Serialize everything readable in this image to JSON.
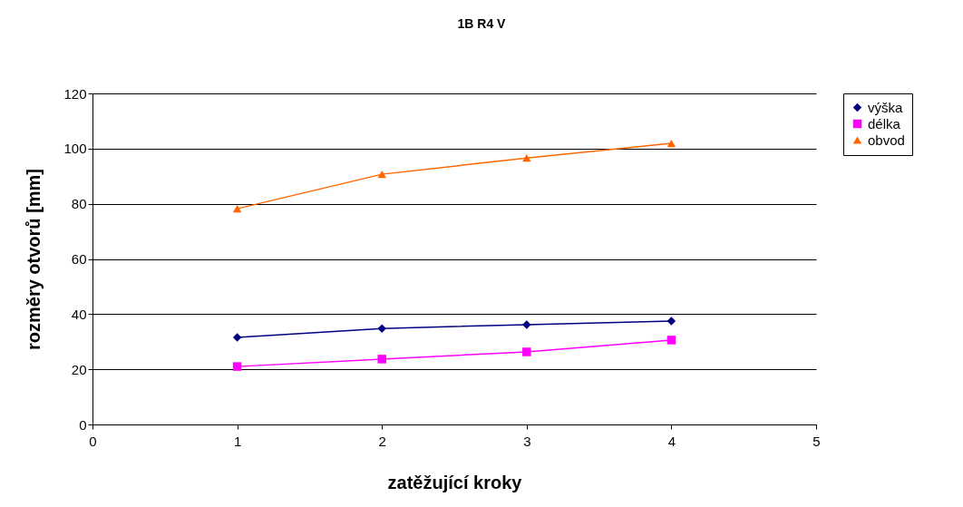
{
  "chart_data": {
    "type": "line",
    "title": "1B R4 V",
    "xlabel": "zatěžující kroky",
    "ylabel": "rozměry otvorů [mm]",
    "x": [
      1,
      2,
      3,
      4
    ],
    "series": [
      {
        "name": "výška",
        "color": "#000080",
        "marker": "diamond",
        "values": [
          31.6,
          34.8,
          36.2,
          37.5
        ]
      },
      {
        "name": "délka",
        "color": "#ff00ff",
        "marker": "square",
        "values": [
          21.0,
          23.7,
          26.3,
          30.6
        ]
      },
      {
        "name": "obvod",
        "color": "#ff6600",
        "marker": "triangle",
        "values": [
          78.2,
          90.7,
          96.6,
          101.9
        ]
      }
    ],
    "xlim": [
      0,
      5
    ],
    "xticks": [
      0,
      1,
      2,
      3,
      4,
      5
    ],
    "ylim": [
      0,
      120
    ],
    "yticks": [
      0,
      20,
      40,
      60,
      80,
      100,
      120
    ],
    "grid": "y",
    "legend": "right"
  }
}
